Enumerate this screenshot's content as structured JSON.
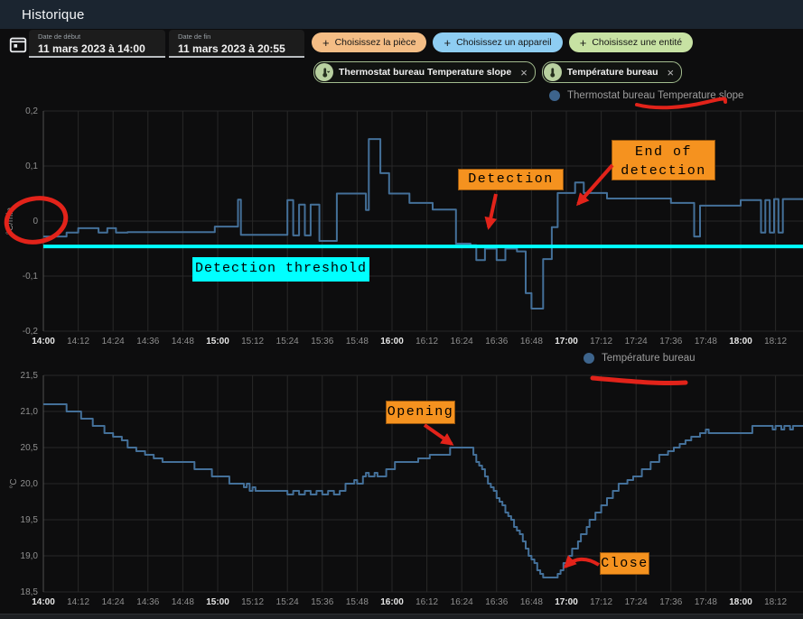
{
  "app": {
    "title": "Historique"
  },
  "toolbar": {
    "date_start": {
      "label": "Date de début",
      "value": "11 mars 2023 à 14:00"
    },
    "date_end": {
      "label": "Date de fin",
      "value": "11 mars 2023 à 20:55"
    },
    "picker_chips": [
      {
        "label": "Choisissez la pièce",
        "plus": "+",
        "color": "#f4bd85"
      },
      {
        "label": "Choisissez un appareil",
        "plus": "+",
        "color": "#8ecdf2"
      },
      {
        "label": "Choisissez une entité",
        "plus": "+",
        "color": "#c7e2a3"
      }
    ],
    "entity_chips": [
      {
        "label": "Thermostat bureau Temperature slope",
        "icon": "thermometer-chevron-icon",
        "close": "×"
      },
      {
        "label": "Température bureau",
        "icon": "thermometer-icon",
        "close": "×"
      }
    ]
  },
  "chart_data": [
    {
      "type": "line",
      "step": true,
      "legend": "Thermostat bureau Temperature slope",
      "ylabel": "°C/min",
      "color": "#447099",
      "grid": true,
      "ylim": [
        -0.2,
        0.2
      ],
      "y_ticks": [
        {
          "value": 0.2,
          "label": "0,2"
        },
        {
          "value": 0.1,
          "label": "0,1"
        },
        {
          "value": 0,
          "label": "0"
        },
        {
          "value": -0.1,
          "label": "-0,1"
        },
        {
          "value": -0.2,
          "label": "-0,2"
        }
      ],
      "x_unit": "minutes after 14:00",
      "x_tick_step_min": 12,
      "x_tick_labels": [
        "14:00",
        "14:12",
        "14:24",
        "14:36",
        "14:48",
        "15:00",
        "15:12",
        "15:24",
        "15:36",
        "15:48",
        "16:00",
        "16:12",
        "16:24",
        "16:36",
        "16:48",
        "17:00",
        "17:12",
        "17:24",
        "17:36",
        "17:48",
        "18:00",
        "18:12"
      ],
      "points": [
        [
          0,
          -0.028
        ],
        [
          8,
          -0.021
        ],
        [
          12,
          -0.013
        ],
        [
          19,
          -0.021
        ],
        [
          22,
          -0.013
        ],
        [
          25,
          -0.021
        ],
        [
          29,
          -0.02
        ],
        [
          59,
          -0.01
        ],
        [
          67,
          0.039
        ],
        [
          68,
          -0.025
        ],
        [
          84,
          0.038
        ],
        [
          86,
          -0.026
        ],
        [
          88,
          0.03
        ],
        [
          90,
          -0.026
        ],
        [
          92,
          0.03
        ],
        [
          95,
          -0.036
        ],
        [
          101,
          0.05
        ],
        [
          111,
          0.02
        ],
        [
          112,
          0.149
        ],
        [
          116,
          0.087
        ],
        [
          119,
          0.05
        ],
        [
          126,
          0.033
        ],
        [
          134,
          0.021
        ],
        [
          142,
          -0.041
        ],
        [
          147,
          -0.044
        ],
        [
          149,
          -0.071
        ],
        [
          152,
          -0.05
        ],
        [
          156,
          -0.071
        ],
        [
          159,
          -0.05
        ],
        [
          163,
          -0.055
        ],
        [
          166,
          -0.131
        ],
        [
          168,
          -0.159
        ],
        [
          172,
          -0.069
        ],
        [
          175,
          -0.011
        ],
        [
          177,
          0.051
        ],
        [
          183,
          0.07
        ],
        [
          186,
          0.051
        ],
        [
          194,
          0.041
        ],
        [
          216,
          0.033
        ],
        [
          224,
          -0.028
        ],
        [
          226,
          0.028
        ],
        [
          240,
          0.038
        ],
        [
          247,
          -0.021
        ],
        [
          248.5,
          0.038
        ],
        [
          250,
          -0.021
        ],
        [
          251.5,
          0.04
        ],
        [
          253,
          -0.021
        ],
        [
          254.5,
          0.04
        ]
      ],
      "threshold": {
        "value": -0.046,
        "color": "#00ffff",
        "label": "Detection threshold"
      },
      "annotations": [
        {
          "text": "Detection"
        },
        {
          "text": "End of detection"
        }
      ]
    },
    {
      "type": "line",
      "step": true,
      "legend": "Température bureau",
      "ylabel": "°C",
      "color": "#447099",
      "grid": true,
      "ylim": [
        18.5,
        21.5
      ],
      "y_ticks": [
        {
          "value": 21.5,
          "label": "21,5"
        },
        {
          "value": 21.0,
          "label": "21,0"
        },
        {
          "value": 20.5,
          "label": "20,5"
        },
        {
          "value": 20.0,
          "label": "20,0"
        },
        {
          "value": 19.5,
          "label": "19,5"
        },
        {
          "value": 19.0,
          "label": "19,0"
        },
        {
          "value": 18.5,
          "label": "18,5"
        }
      ],
      "x_unit": "minutes after 14:00",
      "x_tick_step_min": 12,
      "x_tick_labels": [
        "14:00",
        "14:12",
        "14:24",
        "14:36",
        "14:48",
        "15:00",
        "15:12",
        "15:24",
        "15:36",
        "15:48",
        "16:00",
        "16:12",
        "16:24",
        "16:36",
        "16:48",
        "17:00",
        "17:12",
        "17:24",
        "17:36",
        "17:48",
        "18:00",
        "18:12"
      ],
      "points": [
        [
          0,
          21.1
        ],
        [
          8,
          21.0
        ],
        [
          13,
          20.9
        ],
        [
          17,
          20.8
        ],
        [
          21,
          20.7
        ],
        [
          24,
          20.65
        ],
        [
          27,
          20.6
        ],
        [
          29,
          20.5
        ],
        [
          32,
          20.45
        ],
        [
          35,
          20.4
        ],
        [
          38,
          20.35
        ],
        [
          41,
          20.3
        ],
        [
          52,
          20.2
        ],
        [
          58,
          20.1
        ],
        [
          64,
          20.0
        ],
        [
          69,
          19.95
        ],
        [
          70,
          20.0
        ],
        [
          71,
          19.9
        ],
        [
          72,
          19.95
        ],
        [
          73,
          19.9
        ],
        [
          84,
          19.85
        ],
        [
          86,
          19.9
        ],
        [
          88,
          19.85
        ],
        [
          90,
          19.9
        ],
        [
          92,
          19.85
        ],
        [
          94,
          19.9
        ],
        [
          96,
          19.85
        ],
        [
          98,
          19.9
        ],
        [
          100,
          19.85
        ],
        [
          102,
          19.9
        ],
        [
          104,
          20.0
        ],
        [
          107,
          20.05
        ],
        [
          108,
          20.0
        ],
        [
          110,
          20.1
        ],
        [
          111,
          20.15
        ],
        [
          112,
          20.1
        ],
        [
          114,
          20.15
        ],
        [
          115,
          20.1
        ],
        [
          118,
          20.2
        ],
        [
          121,
          20.3
        ],
        [
          129,
          20.35
        ],
        [
          133,
          20.4
        ],
        [
          140,
          20.5
        ],
        [
          148,
          20.4
        ],
        [
          149,
          20.3
        ],
        [
          150,
          20.25
        ],
        [
          151,
          20.2
        ],
        [
          152,
          20.1
        ],
        [
          153,
          20.0
        ],
        [
          154,
          19.95
        ],
        [
          155,
          19.9
        ],
        [
          156,
          19.8
        ],
        [
          157,
          19.75
        ],
        [
          158,
          19.7
        ],
        [
          159,
          19.6
        ],
        [
          160,
          19.55
        ],
        [
          161,
          19.5
        ],
        [
          162,
          19.4
        ],
        [
          163,
          19.35
        ],
        [
          164,
          19.3
        ],
        [
          165,
          19.2
        ],
        [
          166,
          19.1
        ],
        [
          167,
          19.0
        ],
        [
          168,
          18.95
        ],
        [
          169,
          18.9
        ],
        [
          170,
          18.8
        ],
        [
          171,
          18.75
        ],
        [
          172,
          18.7
        ],
        [
          177,
          18.75
        ],
        [
          178,
          18.8
        ],
        [
          179,
          18.9
        ],
        [
          181,
          19.0
        ],
        [
          182,
          19.1
        ],
        [
          184,
          19.2
        ],
        [
          185,
          19.3
        ],
        [
          187,
          19.4
        ],
        [
          188,
          19.5
        ],
        [
          190,
          19.6
        ],
        [
          192,
          19.7
        ],
        [
          194,
          19.8
        ],
        [
          196,
          19.9
        ],
        [
          198,
          20.0
        ],
        [
          201,
          20.05
        ],
        [
          203,
          20.1
        ],
        [
          206,
          20.2
        ],
        [
          209,
          20.3
        ],
        [
          212,
          20.4
        ],
        [
          215,
          20.45
        ],
        [
          217,
          20.5
        ],
        [
          219,
          20.55
        ],
        [
          221,
          20.6
        ],
        [
          223,
          20.65
        ],
        [
          226,
          20.7
        ],
        [
          228,
          20.75
        ],
        [
          229,
          20.7
        ],
        [
          244,
          20.8
        ],
        [
          251,
          20.75
        ],
        [
          252,
          20.8
        ],
        [
          254,
          20.75
        ],
        [
          255,
          20.8
        ],
        [
          257,
          20.75
        ],
        [
          258,
          20.8
        ]
      ],
      "annotations": [
        {
          "text": "Opening"
        },
        {
          "text": "Close"
        }
      ]
    }
  ]
}
